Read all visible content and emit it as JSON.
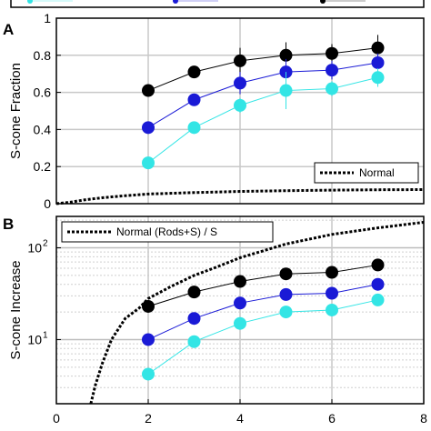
{
  "chart_data": [
    {
      "panel": "A",
      "type": "line",
      "ylabel": "S-cone Fraction",
      "xlim": [
        0,
        8
      ],
      "ylim": [
        0,
        1
      ],
      "xticks": [
        0,
        2,
        4,
        6,
        8
      ],
      "yticks": [
        0,
        0.2,
        0.4,
        0.6,
        0.8,
        1
      ],
      "ytick_labels": [
        "0",
        "0.2",
        "0.4",
        "0.6",
        "0.8",
        "1"
      ],
      "grid": true,
      "legend": {
        "position": "bottom-right",
        "entries": [
          "Normal"
        ]
      },
      "series": [
        {
          "color": "#000000",
          "marker": "circle",
          "x": [
            2,
            3,
            4,
            5,
            6,
            7
          ],
          "y": [
            0.61,
            0.71,
            0.77,
            0.8,
            0.81,
            0.84
          ],
          "err": [
            0.03,
            0.03,
            0.07,
            0.07,
            0.05,
            0.07
          ]
        },
        {
          "color": "#1a1ad6",
          "marker": "circle",
          "x": [
            2,
            3,
            4,
            5,
            6,
            7
          ],
          "y": [
            0.41,
            0.56,
            0.65,
            0.71,
            0.72,
            0.76
          ],
          "err": [
            0.03,
            0.03,
            0.06,
            0.07,
            0.05,
            0.05
          ]
        },
        {
          "color": "#33e5e5",
          "marker": "circle",
          "x": [
            2,
            3,
            4,
            5,
            6,
            7
          ],
          "y": [
            0.22,
            0.41,
            0.53,
            0.61,
            0.62,
            0.68
          ],
          "err": [
            0.02,
            0.02,
            0.04,
            0.1,
            0.04,
            0.05
          ]
        },
        {
          "name": "Normal",
          "color": "#000000",
          "style": "dotted",
          "x": [
            0,
            0.3,
            0.6,
            1,
            1.5,
            2,
            3,
            4,
            5,
            6,
            7,
            8
          ],
          "y": [
            0,
            0.008,
            0.02,
            0.032,
            0.043,
            0.052,
            0.06,
            0.066,
            0.07,
            0.073,
            0.075,
            0.076
          ]
        }
      ]
    },
    {
      "panel": "B",
      "type": "line",
      "ylabel": "S-cone Increase",
      "xlim": [
        0,
        8
      ],
      "ylim": [
        2,
        220
      ],
      "yscale": "log",
      "xticks": [
        0,
        2,
        4,
        6,
        8
      ],
      "xtick_labels": [
        "0",
        "2",
        "4",
        "6",
        "8"
      ],
      "yticks": [
        10,
        100
      ],
      "grid": true,
      "legend": {
        "position": "top-left",
        "entries": [
          "Normal (Rods+S) / S"
        ]
      },
      "series": [
        {
          "color": "#000000",
          "marker": "circle",
          "x": [
            2,
            3,
            4,
            5,
            6,
            7
          ],
          "y": [
            23,
            33,
            43,
            52,
            54,
            65
          ]
        },
        {
          "color": "#1a1ad6",
          "marker": "circle",
          "x": [
            2,
            3,
            4,
            5,
            6,
            7
          ],
          "y": [
            10,
            17,
            25,
            31,
            32,
            40
          ]
        },
        {
          "color": "#33e5e5",
          "marker": "circle",
          "x": [
            2,
            3,
            4,
            5,
            6,
            7
          ],
          "y": [
            4.2,
            9.5,
            15,
            20,
            21,
            27
          ]
        },
        {
          "name": "Normal (Rods+S) / S",
          "color": "#000000",
          "style": "dotted",
          "x": [
            0.75,
            0.85,
            1.0,
            1.2,
            1.5,
            1.8,
            2,
            2.5,
            3,
            3.5,
            4,
            5,
            6,
            7,
            8
          ],
          "y": [
            2,
            3.2,
            5.5,
            10,
            17,
            22,
            28,
            38,
            50,
            62,
            78,
            110,
            140,
            165,
            190
          ]
        }
      ]
    }
  ]
}
